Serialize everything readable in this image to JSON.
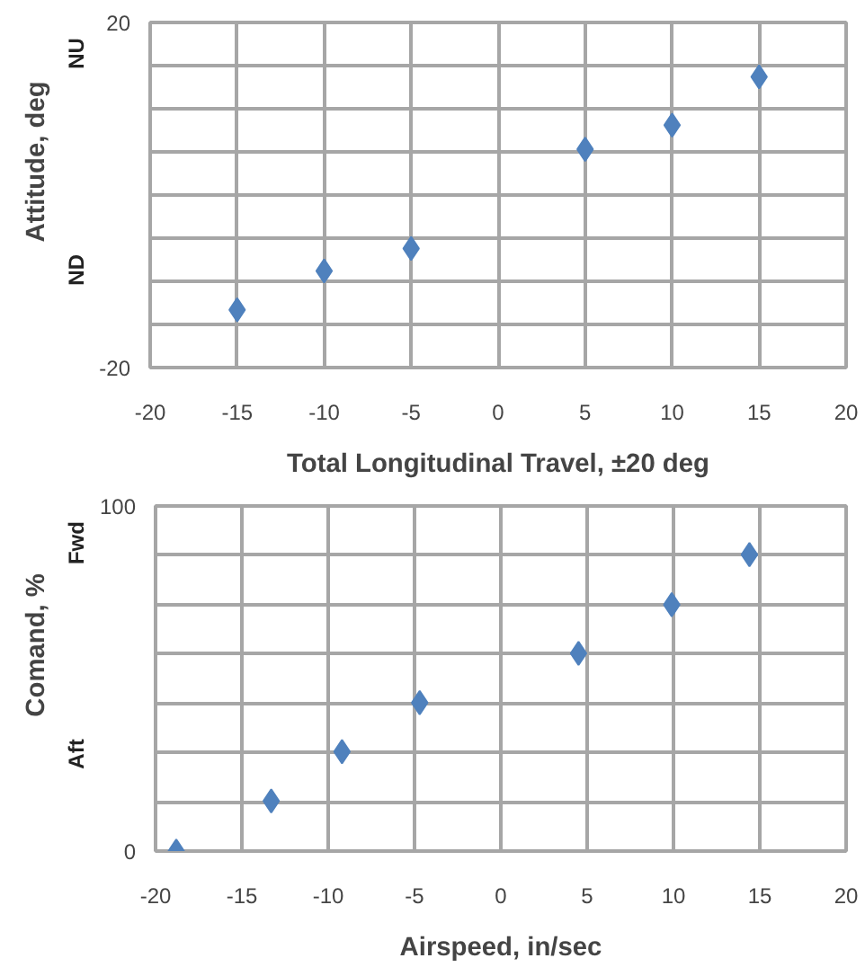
{
  "chart_data": [
    {
      "type": "scatter",
      "xlabel": "Total Longitudinal Travel, ±20 deg",
      "ylabel": "Attitude, deg",
      "annotations": [
        "NU",
        "ND"
      ],
      "x": [
        -15,
        -10,
        -5,
        5,
        10,
        15
      ],
      "series": [
        {
          "color": "#4f81bd",
          "values": [
            -13.3,
            -8.8,
            -6.2,
            5.3,
            8.1,
            13.7
          ]
        }
      ],
      "xlim": [
        -20,
        20
      ],
      "xticks": [
        -20,
        -15,
        -10,
        -5,
        0,
        5,
        10,
        15,
        20
      ],
      "ylim": [
        -20,
        20
      ],
      "yticks": [
        -20,
        {
          "value": -15,
          "label": null
        },
        {
          "value": -10,
          "label": null
        },
        {
          "value": -5,
          "label": null
        },
        {
          "value": 0,
          "label": null
        },
        {
          "value": 5,
          "label": null
        },
        {
          "value": 10,
          "label": null
        },
        {
          "value": 15,
          "label": null
        },
        20
      ],
      "grid": true,
      "marker": "diamond"
    },
    {
      "type": "scatter",
      "xlabel": "Airspeed, in/sec",
      "ylabel": "Comand, %",
      "annotations": [
        "Fwd",
        "Aft"
      ],
      "x": [
        -18.8,
        -13.3,
        -9.2,
        -4.7,
        4.5,
        9.9,
        14.4
      ],
      "series": [
        {
          "color": "#4f81bd",
          "values": [
            0,
            14.5,
            28.8,
            43.0,
            57.3,
            71.4,
            85.9
          ]
        }
      ],
      "xlim": [
        -20,
        20
      ],
      "xticks": [
        -20,
        -15,
        -10,
        -5,
        0,
        5,
        10,
        15,
        20
      ],
      "ylim": [
        0,
        100
      ],
      "yticks": [
        0,
        {
          "value": 14.29,
          "label": null
        },
        {
          "value": 28.57,
          "label": null
        },
        {
          "value": 42.86,
          "label": null
        },
        {
          "value": 57.14,
          "label": null
        },
        {
          "value": 71.43,
          "label": null
        },
        {
          "value": 85.71,
          "label": null
        },
        100
      ],
      "grid": true,
      "marker": "diamond"
    }
  ]
}
